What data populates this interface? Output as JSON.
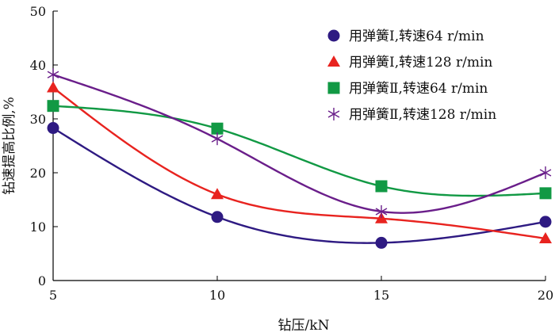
{
  "chart_data": {
    "type": "line",
    "xlabel": "钻压/kN",
    "ylabel": "钻速提高比例,%",
    "xlim": [
      5,
      20
    ],
    "ylim": [
      0,
      50
    ],
    "x_ticks": [
      "5",
      "10",
      "15",
      "20"
    ],
    "y_ticks": [
      "0",
      "10",
      "20",
      "30",
      "40",
      "50"
    ],
    "grid": false,
    "legend_position": "top-right",
    "smooth": true,
    "x": [
      5,
      10,
      15,
      20
    ],
    "series": [
      {
        "name": "用弹簧Ⅰ,转速64 r/min",
        "values": [
          28.3,
          11.8,
          7.0,
          10.9
        ],
        "color": "#2e1a82",
        "marker": "circle"
      },
      {
        "name": "用弹簧Ⅰ,转速128 r/min",
        "values": [
          35.8,
          16.0,
          11.5,
          7.8
        ],
        "color": "#e8231f",
        "marker": "triangle"
      },
      {
        "name": "用弹簧Ⅱ,转速64 r/min",
        "values": [
          32.4,
          28.2,
          17.5,
          16.2
        ],
        "color": "#119944",
        "marker": "square"
      },
      {
        "name": "用弹簧Ⅱ,转速128 r/min",
        "values": [
          38.2,
          26.3,
          12.8,
          20.0
        ],
        "color": "#6a1e8a",
        "marker": "star"
      }
    ]
  }
}
